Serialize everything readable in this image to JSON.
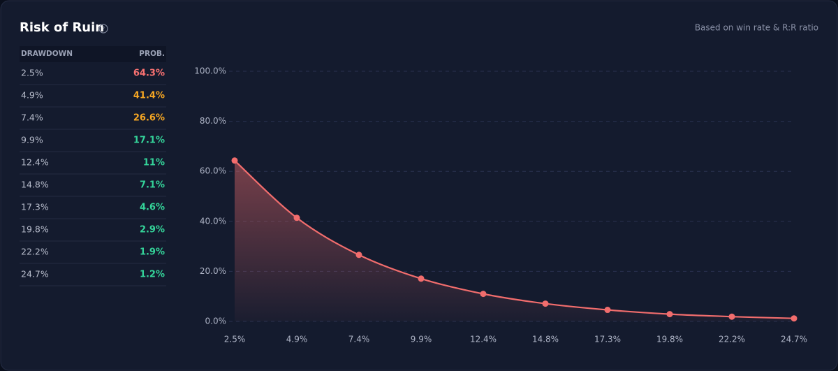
{
  "header": {
    "title": "Risk of Ruin",
    "note": "Based on win rate & R:R ratio"
  },
  "table": {
    "columns": [
      "DRAWDOWN",
      "PROB."
    ],
    "rows": [
      [
        "2.5%",
        "64.3%"
      ],
      [
        "4.9%",
        "41.4%"
      ],
      [
        "7.4%",
        "26.6%"
      ],
      [
        "9.9%",
        "17.1%"
      ],
      [
        "12.4%",
        "11%"
      ],
      [
        "14.8%",
        "7.1%"
      ],
      [
        "17.3%",
        "4.6%"
      ],
      [
        "19.8%",
        "2.9%"
      ],
      [
        "22.2%",
        "1.9%"
      ],
      [
        "24.7%",
        "1.2%"
      ]
    ],
    "value_colors": [
      "#f87171",
      "#f5a623",
      "#f5a623",
      "#34d399",
      "#34d399",
      "#34d399",
      "#34d399",
      "#34d399",
      "#34d399",
      "#34d399"
    ]
  },
  "chart_data": {
    "type": "line",
    "categories": [
      "2.5%",
      "4.9%",
      "7.4%",
      "9.9%",
      "12.4%",
      "14.8%",
      "17.3%",
      "19.8%",
      "22.2%",
      "24.7%"
    ],
    "values": [
      64.3,
      41.4,
      26.6,
      17.1,
      11,
      7.1,
      4.6,
      2.9,
      1.9,
      1.2
    ],
    "color": "#f26d6d",
    "ylim": [
      0,
      100
    ],
    "yticks": [
      {
        "value": 0,
        "label": "0.0%"
      },
      {
        "value": 20,
        "label": "20.0%"
      },
      {
        "value": 40,
        "label": "40.0%"
      },
      {
        "value": 60,
        "label": "60.0%"
      },
      {
        "value": 80,
        "label": "80.0%"
      },
      {
        "value": 100,
        "label": "100.0%"
      }
    ],
    "grid": true
  }
}
